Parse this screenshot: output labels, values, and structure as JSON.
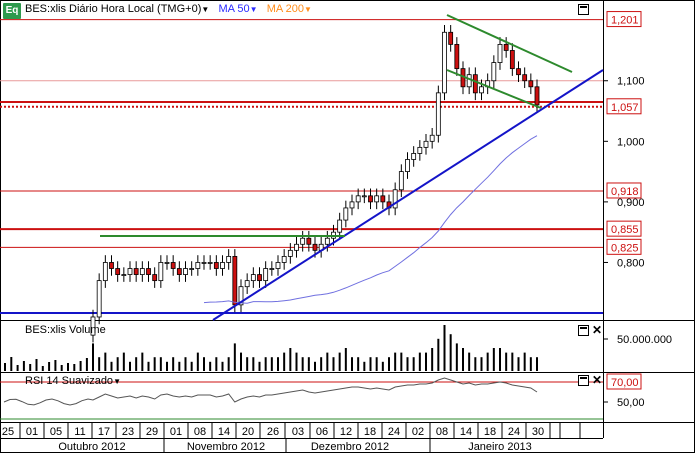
{
  "header": {
    "app_badge": "Eq",
    "symbol_title": "BES:xlis Diário Hora Local (TMG+0)",
    "ma50_label": "MA 50",
    "ma200_label": "MA 200",
    "ma50_color": "#2a2aff",
    "ma200_color": "#ff8c1a"
  },
  "volume_pane": {
    "title": "BES:xlis Volume",
    "axis_label": "50.000.000"
  },
  "rsi_pane": {
    "title": "RSI 14 Suavizado",
    "level_high": "70,00",
    "level_mid": "50,00"
  },
  "price_axis": {
    "ticks": [
      "1,100",
      "1,000",
      "0,900",
      "0,800"
    ],
    "level_labels": [
      "1,201",
      "1,057",
      "0,918",
      "0,855",
      "0,825"
    ]
  },
  "time_axis": {
    "days": [
      "25",
      "01",
      "05",
      "11",
      "17",
      "23",
      "29",
      "01",
      "08",
      "14",
      "20",
      "26",
      "03",
      "06",
      "12",
      "18",
      "24",
      "02",
      "08",
      "14",
      "18",
      "24",
      "30"
    ],
    "months": [
      "Outubro 2012",
      "Novembro 2012",
      "Dezembro 2012",
      "Janeiro 2013"
    ]
  },
  "colors": {
    "level_line": "#cc1010",
    "trend_blue": "#1414c8",
    "trend_green": "#2d8a2d",
    "candle_up": "#ffffff",
    "candle_down": "#cc1010"
  },
  "chart_data": {
    "type": "candlestick",
    "ylim": [
      0.705,
      1.23
    ],
    "horizontal_levels": [
      1.201,
      1.1,
      1.065,
      1.057,
      0.918,
      0.855,
      0.825
    ],
    "closes": [
      0.71,
      0.77,
      0.8,
      0.79,
      0.78,
      0.78,
      0.79,
      0.78,
      0.79,
      0.78,
      0.77,
      0.8,
      0.8,
      0.79,
      0.78,
      0.79,
      0.79,
      0.8,
      0.8,
      0.8,
      0.79,
      0.8,
      0.81,
      0.73,
      0.76,
      0.77,
      0.78,
      0.77,
      0.79,
      0.79,
      0.8,
      0.81,
      0.82,
      0.83,
      0.84,
      0.83,
      0.82,
      0.83,
      0.84,
      0.85,
      0.87,
      0.89,
      0.9,
      0.91,
      0.91,
      0.9,
      0.91,
      0.9,
      0.89,
      0.92,
      0.95,
      0.97,
      0.98,
      0.99,
      1.0,
      1.01,
      1.08,
      1.18,
      1.16,
      1.12,
      1.09,
      1.11,
      1.08,
      1.09,
      1.1,
      1.13,
      1.16,
      1.15,
      1.12,
      1.11,
      1.1,
      1.09,
      1.06
    ],
    "volume": [
      0.6,
      0.3,
      0.4,
      0.2,
      0.3,
      0.4,
      0.2,
      0.3,
      0.4,
      0.2,
      0.3,
      0.3,
      0.2,
      0.3,
      0.2,
      0.3,
      0.2,
      0.4,
      0.3,
      0.2,
      0.3,
      0.2,
      0.3,
      0.6,
      0.4,
      0.3,
      0.3,
      0.2,
      0.3,
      0.3,
      0.3,
      0.4,
      0.5,
      0.4,
      0.3,
      0.3,
      0.2,
      0.3,
      0.4,
      0.3,
      0.4,
      0.5,
      0.3,
      0.3,
      0.2,
      0.3,
      0.3,
      0.2,
      0.3,
      0.4,
      0.4,
      0.3,
      0.3,
      0.4,
      0.4,
      0.5,
      0.7,
      1.0,
      0.8,
      0.6,
      0.5,
      0.4,
      0.3,
      0.3,
      0.4,
      0.5,
      0.5,
      0.4,
      0.4,
      0.3,
      0.4,
      0.3,
      0.3
    ],
    "rsi": [
      52,
      55,
      58,
      56,
      54,
      55,
      56,
      54,
      56,
      55,
      53,
      57,
      58,
      56,
      55,
      56,
      55,
      57,
      57,
      57,
      55,
      56,
      58,
      50,
      53,
      55,
      56,
      55,
      57,
      57,
      58,
      59,
      60,
      61,
      62,
      60,
      59,
      60,
      61,
      62,
      63,
      64,
      65,
      65,
      64,
      63,
      64,
      63,
      62,
      65,
      66,
      67,
      67,
      68,
      68,
      69,
      72,
      74,
      72,
      70,
      68,
      69,
      67,
      68,
      68,
      69,
      70,
      69,
      67,
      66,
      65,
      64,
      60
    ]
  }
}
